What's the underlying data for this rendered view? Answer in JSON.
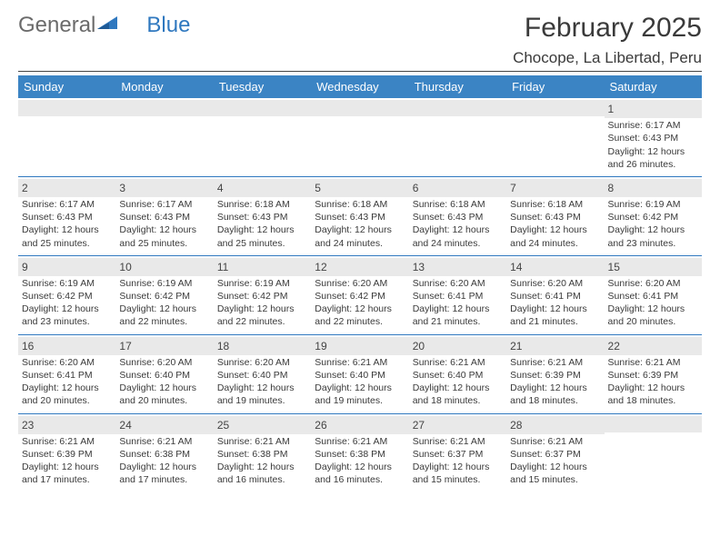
{
  "logo": {
    "text1": "General",
    "text2": "Blue"
  },
  "title": "February 2025",
  "location": "Chocope, La Libertad, Peru",
  "colors": {
    "header_bar": "#3b84c4",
    "week_separator": "#2f78bf",
    "daynum_bg": "#e9e9e9",
    "text": "#3a3a3a",
    "logo_grey": "#6b6b6b",
    "logo_blue": "#2f78bf",
    "background": "#ffffff"
  },
  "day_names": [
    "Sunday",
    "Monday",
    "Tuesday",
    "Wednesday",
    "Thursday",
    "Friday",
    "Saturday"
  ],
  "weeks": [
    [
      null,
      null,
      null,
      null,
      null,
      null,
      {
        "n": "1",
        "sr": "Sunrise: 6:17 AM",
        "ss": "Sunset: 6:43 PM",
        "dl": "Daylight: 12 hours and 26 minutes."
      }
    ],
    [
      {
        "n": "2",
        "sr": "Sunrise: 6:17 AM",
        "ss": "Sunset: 6:43 PM",
        "dl": "Daylight: 12 hours and 25 minutes."
      },
      {
        "n": "3",
        "sr": "Sunrise: 6:17 AM",
        "ss": "Sunset: 6:43 PM",
        "dl": "Daylight: 12 hours and 25 minutes."
      },
      {
        "n": "4",
        "sr": "Sunrise: 6:18 AM",
        "ss": "Sunset: 6:43 PM",
        "dl": "Daylight: 12 hours and 25 minutes."
      },
      {
        "n": "5",
        "sr": "Sunrise: 6:18 AM",
        "ss": "Sunset: 6:43 PM",
        "dl": "Daylight: 12 hours and 24 minutes."
      },
      {
        "n": "6",
        "sr": "Sunrise: 6:18 AM",
        "ss": "Sunset: 6:43 PM",
        "dl": "Daylight: 12 hours and 24 minutes."
      },
      {
        "n": "7",
        "sr": "Sunrise: 6:18 AM",
        "ss": "Sunset: 6:43 PM",
        "dl": "Daylight: 12 hours and 24 minutes."
      },
      {
        "n": "8",
        "sr": "Sunrise: 6:19 AM",
        "ss": "Sunset: 6:42 PM",
        "dl": "Daylight: 12 hours and 23 minutes."
      }
    ],
    [
      {
        "n": "9",
        "sr": "Sunrise: 6:19 AM",
        "ss": "Sunset: 6:42 PM",
        "dl": "Daylight: 12 hours and 23 minutes."
      },
      {
        "n": "10",
        "sr": "Sunrise: 6:19 AM",
        "ss": "Sunset: 6:42 PM",
        "dl": "Daylight: 12 hours and 22 minutes."
      },
      {
        "n": "11",
        "sr": "Sunrise: 6:19 AM",
        "ss": "Sunset: 6:42 PM",
        "dl": "Daylight: 12 hours and 22 minutes."
      },
      {
        "n": "12",
        "sr": "Sunrise: 6:20 AM",
        "ss": "Sunset: 6:42 PM",
        "dl": "Daylight: 12 hours and 22 minutes."
      },
      {
        "n": "13",
        "sr": "Sunrise: 6:20 AM",
        "ss": "Sunset: 6:41 PM",
        "dl": "Daylight: 12 hours and 21 minutes."
      },
      {
        "n": "14",
        "sr": "Sunrise: 6:20 AM",
        "ss": "Sunset: 6:41 PM",
        "dl": "Daylight: 12 hours and 21 minutes."
      },
      {
        "n": "15",
        "sr": "Sunrise: 6:20 AM",
        "ss": "Sunset: 6:41 PM",
        "dl": "Daylight: 12 hours and 20 minutes."
      }
    ],
    [
      {
        "n": "16",
        "sr": "Sunrise: 6:20 AM",
        "ss": "Sunset: 6:41 PM",
        "dl": "Daylight: 12 hours and 20 minutes."
      },
      {
        "n": "17",
        "sr": "Sunrise: 6:20 AM",
        "ss": "Sunset: 6:40 PM",
        "dl": "Daylight: 12 hours and 20 minutes."
      },
      {
        "n": "18",
        "sr": "Sunrise: 6:20 AM",
        "ss": "Sunset: 6:40 PM",
        "dl": "Daylight: 12 hours and 19 minutes."
      },
      {
        "n": "19",
        "sr": "Sunrise: 6:21 AM",
        "ss": "Sunset: 6:40 PM",
        "dl": "Daylight: 12 hours and 19 minutes."
      },
      {
        "n": "20",
        "sr": "Sunrise: 6:21 AM",
        "ss": "Sunset: 6:40 PM",
        "dl": "Daylight: 12 hours and 18 minutes."
      },
      {
        "n": "21",
        "sr": "Sunrise: 6:21 AM",
        "ss": "Sunset: 6:39 PM",
        "dl": "Daylight: 12 hours and 18 minutes."
      },
      {
        "n": "22",
        "sr": "Sunrise: 6:21 AM",
        "ss": "Sunset: 6:39 PM",
        "dl": "Daylight: 12 hours and 18 minutes."
      }
    ],
    [
      {
        "n": "23",
        "sr": "Sunrise: 6:21 AM",
        "ss": "Sunset: 6:39 PM",
        "dl": "Daylight: 12 hours and 17 minutes."
      },
      {
        "n": "24",
        "sr": "Sunrise: 6:21 AM",
        "ss": "Sunset: 6:38 PM",
        "dl": "Daylight: 12 hours and 17 minutes."
      },
      {
        "n": "25",
        "sr": "Sunrise: 6:21 AM",
        "ss": "Sunset: 6:38 PM",
        "dl": "Daylight: 12 hours and 16 minutes."
      },
      {
        "n": "26",
        "sr": "Sunrise: 6:21 AM",
        "ss": "Sunset: 6:38 PM",
        "dl": "Daylight: 12 hours and 16 minutes."
      },
      {
        "n": "27",
        "sr": "Sunrise: 6:21 AM",
        "ss": "Sunset: 6:37 PM",
        "dl": "Daylight: 12 hours and 15 minutes."
      },
      {
        "n": "28",
        "sr": "Sunrise: 6:21 AM",
        "ss": "Sunset: 6:37 PM",
        "dl": "Daylight: 12 hours and 15 minutes."
      },
      null
    ]
  ]
}
